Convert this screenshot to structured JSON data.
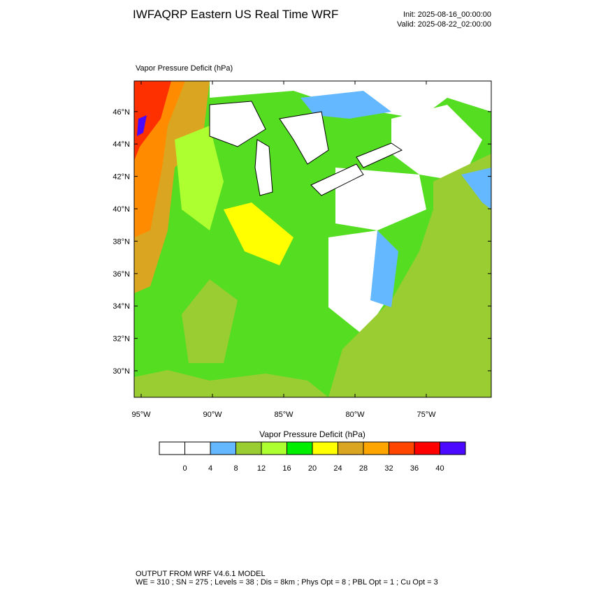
{
  "header": {
    "title": "IWFAQRP Eastern US Real Time WRF",
    "init": "Init: 2025-08-16_00:00:00",
    "valid": "Valid: 2025-08-22_02:00:00"
  },
  "map": {
    "title": "Vapor Pressure Deficit   (hPa)",
    "lat_labels": [
      "30°N",
      "32°N",
      "34°N",
      "36°N",
      "38°N",
      "40°N",
      "42°N",
      "44°N",
      "46°N"
    ],
    "lon_labels": [
      "95°W",
      "90°W",
      "85°W",
      "80°W",
      "75°W"
    ]
  },
  "colorbar": {
    "title": "Vapor Pressure Deficit   (hPa)",
    "colors": [
      "#ffffff",
      "#ffffff",
      "#63b8ff",
      "#9acd32",
      "#adff2f",
      "#00ee00",
      "#ffff00",
      "#daa520",
      "#ffa500",
      "#ff4500",
      "#ff0000",
      "#4b0aff"
    ],
    "ticks": [
      "0",
      "4",
      "8",
      "12",
      "16",
      "20",
      "24",
      "28",
      "32",
      "36",
      "40"
    ]
  },
  "footer": {
    "line1": "OUTPUT FROM WRF V4.6.1 MODEL",
    "line2": "WE = 310 ; SN = 275 ; Levels = 38 ; Dis = 8km ; Phys Opt = 8 ; PBL Opt = 1 ; Cu Opt = 3"
  }
}
